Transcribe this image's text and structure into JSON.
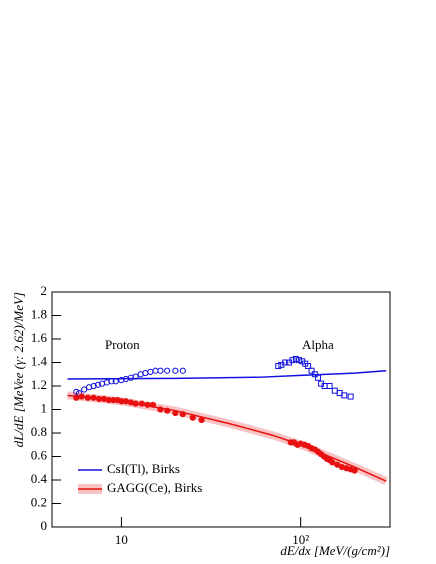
{
  "chart_data": {
    "type": "scatter",
    "xlabel": "dE/dx [MeV/(g/cm²)]",
    "ylabel": "dL/dE [MeVee (γ: 2.62)/MeV]",
    "xscale": "log",
    "xlim": [
      4.1,
      315
    ],
    "ylim": [
      0,
      2
    ],
    "xticks": [
      10,
      {
        "value": 100,
        "label": "10²"
      }
    ],
    "yticks": [
      0,
      0.2,
      0.4,
      0.6,
      0.8,
      1,
      1.2,
      1.4,
      1.6,
      1.8,
      2
    ],
    "grid": false,
    "legend": "bottom-left",
    "annotations": [
      "Proton",
      "Alpha"
    ],
    "series": [
      {
        "mode": "markers",
        "marker": "open-circle",
        "color": "#1010e0",
        "x": [
          5.6,
          5.8,
          6.2,
          6.6,
          7,
          7.4,
          7.8,
          8.3,
          8.8,
          9.3,
          10,
          10.6,
          11.3,
          12,
          12.8,
          13.6,
          14.5,
          15.5,
          16.5,
          18,
          20,
          22
        ],
        "values": [
          1.15,
          1.14,
          1.17,
          1.19,
          1.2,
          1.21,
          1.22,
          1.23,
          1.24,
          1.24,
          1.25,
          1.26,
          1.27,
          1.28,
          1.3,
          1.31,
          1.32,
          1.33,
          1.33,
          1.33,
          1.33,
          1.33
        ]
      },
      {
        "mode": "markers",
        "marker": "open-square",
        "color": "#1010e0",
        "x": [
          75,
          78,
          82,
          86,
          90,
          94,
          98,
          102,
          106,
          110,
          115,
          120,
          125,
          130,
          136,
          145,
          155,
          165,
          175,
          190
        ],
        "values": [
          1.37,
          1.38,
          1.4,
          1.4,
          1.42,
          1.43,
          1.42,
          1.41,
          1.39,
          1.37,
          1.33,
          1.3,
          1.27,
          1.22,
          1.2,
          1.2,
          1.16,
          1.14,
          1.12,
          1.11
        ]
      },
      {
        "mode": "markers",
        "marker": "filled-circle",
        "color": "#e81010",
        "x": [
          5.6,
          6,
          6.5,
          7,
          7.5,
          8,
          8.5,
          9,
          9.5,
          10,
          10.6,
          11.3,
          12,
          13,
          14,
          15,
          16.5,
          18,
          20,
          22,
          25,
          28
        ],
        "values": [
          1.1,
          1.11,
          1.1,
          1.1,
          1.09,
          1.09,
          1.08,
          1.08,
          1.08,
          1.07,
          1.07,
          1.06,
          1.05,
          1.05,
          1.04,
          1.04,
          1.0,
          0.99,
          0.97,
          0.96,
          0.93,
          0.91
        ]
      },
      {
        "mode": "markers",
        "marker": "filled-circle",
        "color": "#e81010",
        "x": [
          88,
          92,
          96,
          100,
          105,
          110,
          115,
          120,
          125,
          130,
          135,
          140,
          145,
          150,
          160,
          170,
          180,
          190,
          200
        ],
        "values": [
          0.72,
          0.72,
          0.7,
          0.71,
          0.7,
          0.69,
          0.67,
          0.66,
          0.64,
          0.62,
          0.6,
          0.58,
          0.57,
          0.55,
          0.53,
          0.51,
          0.5,
          0.49,
          0.48
        ]
      },
      {
        "mode": "line",
        "name": "CsI(Tl), Birks",
        "color": "#1010e0",
        "x": [
          5,
          20,
          60,
          100,
          200,
          300
        ],
        "values": [
          1.26,
          1.265,
          1.275,
          1.29,
          1.31,
          1.33
        ]
      },
      {
        "mode": "band-line",
        "name": "GAGG(Ce), Birks",
        "color": "#e81010",
        "x": [
          5,
          10,
          20,
          40,
          70,
          100,
          150,
          200,
          300
        ],
        "values": [
          1.12,
          1.07,
          0.99,
          0.88,
          0.78,
          0.7,
          0.59,
          0.51,
          0.39
        ]
      }
    ]
  }
}
